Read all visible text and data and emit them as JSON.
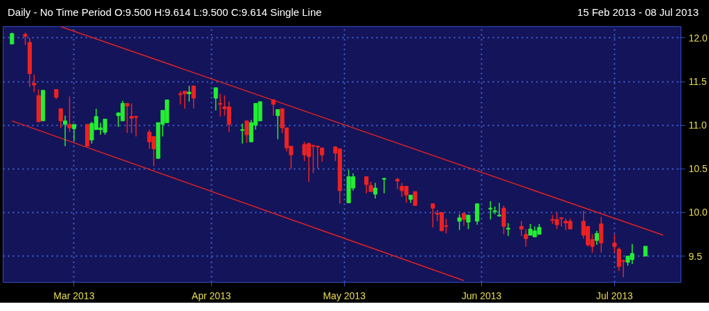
{
  "chart_data": {
    "type": "candlestick",
    "title": "Daily -  No Time Period O:9.500 H:9.614 L:9.500 C:9.614 Single Line",
    "subtitle": "15 Feb 2013  -  08 Jul 2013",
    "x": [
      "2013-02-15",
      "2013-02-18",
      "2013-02-19",
      "2013-02-20",
      "2013-02-21",
      "2013-02-22",
      "2013-02-25",
      "2013-02-26",
      "2013-02-27",
      "2013-02-28",
      "2013-03-01",
      "2013-03-04",
      "2013-03-05",
      "2013-03-06",
      "2013-03-07",
      "2013-03-08",
      "2013-03-11",
      "2013-03-12",
      "2013-03-13",
      "2013-03-14",
      "2013-03-15",
      "2013-03-18",
      "2013-03-19",
      "2013-03-20",
      "2013-03-21",
      "2013-03-22",
      "2013-03-25",
      "2013-03-26",
      "2013-03-27",
      "2013-03-28",
      "2013-04-02",
      "2013-04-03",
      "2013-04-04",
      "2013-04-05",
      "2013-04-08",
      "2013-04-09",
      "2013-04-10",
      "2013-04-11",
      "2013-04-12",
      "2013-04-15",
      "2013-04-16",
      "2013-04-17",
      "2013-04-18",
      "2013-04-19",
      "2013-04-22",
      "2013-04-23",
      "2013-04-24",
      "2013-04-25",
      "2013-04-26",
      "2013-04-29",
      "2013-04-30",
      "2013-05-02",
      "2013-05-03",
      "2013-05-06",
      "2013-05-07",
      "2013-05-08",
      "2013-05-10",
      "2013-05-13",
      "2013-05-14",
      "2013-05-15",
      "2013-05-16",
      "2013-05-17",
      "2013-05-21",
      "2013-05-22",
      "2013-05-23",
      "2013-05-24",
      "2013-05-27",
      "2013-05-28",
      "2013-05-29",
      "2013-05-31",
      "2013-06-03",
      "2013-06-04",
      "2013-06-05",
      "2013-06-06",
      "2013-06-07",
      "2013-06-10",
      "2013-06-11",
      "2013-06-12",
      "2013-06-13",
      "2013-06-14",
      "2013-06-17",
      "2013-06-18",
      "2013-06-19",
      "2013-06-20",
      "2013-06-21",
      "2013-06-24",
      "2013-06-25",
      "2013-06-26",
      "2013-06-27",
      "2013-06-28",
      "2013-07-01",
      "2013-07-02",
      "2013-07-03",
      "2013-07-04",
      "2013-07-05",
      "2013-07-08"
    ],
    "ohlc": [
      [
        11.93,
        12.06,
        11.93,
        12.05
      ],
      [
        12.04,
        12.06,
        11.92,
        12.02
      ],
      [
        11.95,
        12.0,
        11.44,
        11.59
      ],
      [
        11.48,
        11.58,
        11.38,
        11.46
      ],
      [
        11.34,
        11.41,
        11.04,
        11.04
      ],
      [
        11.05,
        11.4,
        11.05,
        11.4
      ],
      [
        11.41,
        11.41,
        11.3,
        11.32
      ],
      [
        11.19,
        11.19,
        10.97,
        11.05
      ],
      [
        11.01,
        11.11,
        10.76,
        11.05
      ],
      [
        11.01,
        11.33,
        10.92,
        10.97
      ],
      [
        10.96,
        11.01,
        10.82,
        11.01
      ],
      [
        11.01,
        11.01,
        10.76,
        10.76
      ],
      [
        10.83,
        11.04,
        10.79,
        11.02
      ],
      [
        10.95,
        11.19,
        10.95,
        11.1
      ],
      [
        10.95,
        11.03,
        10.89,
        10.97
      ],
      [
        10.92,
        11.07,
        10.89,
        11.07
      ],
      [
        11.11,
        11.15,
        10.98,
        11.14
      ],
      [
        11.05,
        11.28,
        11.05,
        11.25
      ],
      [
        11.25,
        11.25,
        10.91,
        11.22
      ],
      [
        11.1,
        11.25,
        10.91,
        11.08
      ],
      [
        11.1,
        11.11,
        10.87,
        11.09
      ],
      [
        10.92,
        10.95,
        10.73,
        10.81
      ],
      [
        10.87,
        10.87,
        10.53,
        10.73
      ],
      [
        10.62,
        11.03,
        10.62,
        11.03
      ],
      [
        11.01,
        11.17,
        10.87,
        11.17
      ],
      [
        11.03,
        11.29,
        11.03,
        11.29
      ],
      [
        11.36,
        11.39,
        11.24,
        11.35
      ],
      [
        11.39,
        11.39,
        11.19,
        11.36
      ],
      [
        11.36,
        11.45,
        11.27,
        11.38
      ],
      [
        11.45,
        11.45,
        11.19,
        11.31
      ],
      [
        11.31,
        11.43,
        11.17,
        11.43
      ],
      [
        11.25,
        11.36,
        11.1,
        11.24
      ],
      [
        11.21,
        11.34,
        11.11,
        11.19
      ],
      [
        11.21,
        11.27,
        10.92,
        11.01
      ],
      [
        10.94,
        11.02,
        10.79,
        10.95
      ],
      [
        11.05,
        11.05,
        10.8,
        10.89
      ],
      [
        10.81,
        11.06,
        10.81,
        11.03
      ],
      [
        11.0,
        11.25,
        10.95,
        11.25
      ],
      [
        11.05,
        11.27,
        11.05,
        11.27
      ],
      [
        11.29,
        11.3,
        11.11,
        11.24
      ],
      [
        11.11,
        11.18,
        10.84,
        11.18
      ],
      [
        11.19,
        11.19,
        10.91,
        10.97
      ],
      [
        10.97,
        10.97,
        10.7,
        10.74
      ],
      [
        10.76,
        10.76,
        10.5,
        10.66
      ],
      [
        10.78,
        10.81,
        10.59,
        10.66
      ],
      [
        10.79,
        10.8,
        10.35,
        10.64
      ],
      [
        10.77,
        10.77,
        10.45,
        10.76
      ],
      [
        10.76,
        10.76,
        10.5,
        10.75
      ],
      [
        10.74,
        10.74,
        10.58,
        10.66
      ],
      [
        10.75,
        10.76,
        10.59,
        10.68
      ],
      [
        10.73,
        10.73,
        10.1,
        10.25
      ],
      [
        10.11,
        10.49,
        10.11,
        10.41
      ],
      [
        10.28,
        10.45,
        10.25,
        10.41
      ],
      [
        10.41,
        10.41,
        10.22,
        10.32
      ],
      [
        10.31,
        10.35,
        10.24,
        10.24
      ],
      [
        10.21,
        10.34,
        10.16,
        10.28
      ],
      [
        10.38,
        10.4,
        10.22,
        10.39
      ],
      [
        10.38,
        10.4,
        10.27,
        10.36
      ],
      [
        10.3,
        10.34,
        10.18,
        10.25
      ],
      [
        10.3,
        10.3,
        10.11,
        10.2
      ],
      [
        10.15,
        10.2,
        10.11,
        10.2
      ],
      [
        10.24,
        10.24,
        10.08,
        10.08
      ],
      [
        10.1,
        10.1,
        9.83,
        10.05
      ],
      [
        9.99,
        10.03,
        9.9,
        9.98
      ],
      [
        10.0,
        10.0,
        9.79,
        9.79
      ],
      [
        9.85,
        9.93,
        9.76,
        9.84
      ],
      [
        9.9,
        9.98,
        9.8,
        9.94
      ],
      [
        9.99,
        9.99,
        9.85,
        9.92
      ],
      [
        9.89,
        9.97,
        9.81,
        9.97
      ],
      [
        9.9,
        10.1,
        9.86,
        10.1
      ],
      [
        10.04,
        10.13,
        9.92,
        10.05
      ],
      [
        10.01,
        10.07,
        9.98,
        10.02
      ],
      [
        9.96,
        10.11,
        9.95,
        9.97
      ],
      [
        10.05,
        10.08,
        9.75,
        9.84
      ],
      [
        9.81,
        9.88,
        9.73,
        9.82
      ],
      [
        9.84,
        9.9,
        9.73,
        9.81
      ],
      [
        9.75,
        9.81,
        9.61,
        9.7
      ],
      [
        9.74,
        9.87,
        9.74,
        9.81
      ],
      [
        9.72,
        9.84,
        9.72,
        9.79
      ],
      [
        9.75,
        9.87,
        9.75,
        9.83
      ],
      [
        9.92,
        9.97,
        9.87,
        9.91
      ],
      [
        9.92,
        10.0,
        9.81,
        9.86
      ],
      [
        9.94,
        9.94,
        9.84,
        9.93
      ],
      [
        9.9,
        9.93,
        9.8,
        9.88
      ],
      [
        9.9,
        9.93,
        9.81,
        9.81
      ],
      [
        9.9,
        10.02,
        9.7,
        9.74
      ],
      [
        9.84,
        9.84,
        9.61,
        9.63
      ],
      [
        9.69,
        9.75,
        9.54,
        9.61
      ],
      [
        9.68,
        9.79,
        9.63,
        9.76
      ],
      [
        9.87,
        9.95,
        9.54,
        9.65
      ],
      [
        9.65,
        9.75,
        9.54,
        9.61
      ],
      [
        9.58,
        9.6,
        9.33,
        9.38
      ],
      [
        9.45,
        9.46,
        9.26,
        9.44
      ],
      [
        9.43,
        9.5,
        9.39,
        9.5
      ],
      [
        9.46,
        9.64,
        9.41,
        9.53
      ],
      [
        9.5,
        9.614,
        9.5,
        9.614
      ]
    ],
    "colors": [
      "#22ee33",
      "#ee2222",
      "#ee2222",
      "#ee2222",
      "#ee2222",
      "#22ee33",
      "#ee2222",
      "#ee2222",
      "#22ee33",
      "#ee2222",
      "#22ee33",
      "#ee2222",
      "#22ee33",
      "#22ee33",
      "#22ee33",
      "#22ee33",
      "#22ee33",
      "#22ee33",
      "#ee2222",
      "#ee2222",
      "#ee2222",
      "#ee2222",
      "#ee2222",
      "#22ee33",
      "#22ee33",
      "#22ee33",
      "#ee2222",
      "#ee2222",
      "#22ee33",
      "#ee2222",
      "#22ee33",
      "#ee2222",
      "#ee2222",
      "#ee2222",
      "#22ee33",
      "#ee2222",
      "#22ee33",
      "#22ee33",
      "#22ee33",
      "#ee2222",
      "#22ee33",
      "#ee2222",
      "#ee2222",
      "#ee2222",
      "#ee2222",
      "#ee2222",
      "#ee2222",
      "#ee2222",
      "#ee2222",
      "#ee2222",
      "#ee2222",
      "#22ee33",
      "#22ee33",
      "#ee2222",
      "#ee2222",
      "#22ee33",
      "#22ee33",
      "#ee2222",
      "#ee2222",
      "#ee2222",
      "#22ee33",
      "#ee2222",
      "#ee2222",
      "#ee2222",
      "#ee2222",
      "#ee2222",
      "#22ee33",
      "#ee2222",
      "#22ee33",
      "#22ee33",
      "#22ee33",
      "#22ee33",
      "#22ee33",
      "#ee2222",
      "#22ee33",
      "#ee2222",
      "#ee2222",
      "#22ee33",
      "#22ee33",
      "#22ee33",
      "#ee2222",
      "#ee2222",
      "#ee2222",
      "#ee2222",
      "#ee2222",
      "#ee2222",
      "#ee2222",
      "#ee2222",
      "#22ee33",
      "#ee2222",
      "#ee2222",
      "#ee2222",
      "#ee2222",
      "#22ee33",
      "#22ee33",
      "#22ee33"
    ],
    "series": [
      {
        "type": "line",
        "color": "#dd2222",
        "x": [
          "2013-02-26",
          "2013-07-12"
        ],
        "values": [
          12.13,
          9.74
        ]
      },
      {
        "type": "line",
        "color": "#dd2222",
        "x": [
          "2013-02-15",
          "2013-05-28"
        ],
        "values": [
          11.05,
          9.22
        ]
      }
    ],
    "xlim": [
      "2013-02-13",
      "2013-07-16"
    ],
    "xticks": [
      {
        "value": "2013-03-01",
        "label": "Mar 2013"
      },
      {
        "value": "2013-04-01",
        "label": "Apr 2013"
      },
      {
        "value": "2013-05-01",
        "label": "May 2013"
      },
      {
        "value": "2013-06-01",
        "label": "Jun 2013"
      },
      {
        "value": "2013-07-01",
        "label": "Jul 2013"
      }
    ],
    "ylim": [
      9.2,
      12.13
    ],
    "yticks": [
      9.5,
      {
        "value": 10,
        "label": "10.0"
      },
      10.5,
      {
        "value": 11,
        "label": "11.0"
      },
      11.5,
      {
        "value": 12,
        "label": "12.0"
      }
    ],
    "grid": true
  }
}
